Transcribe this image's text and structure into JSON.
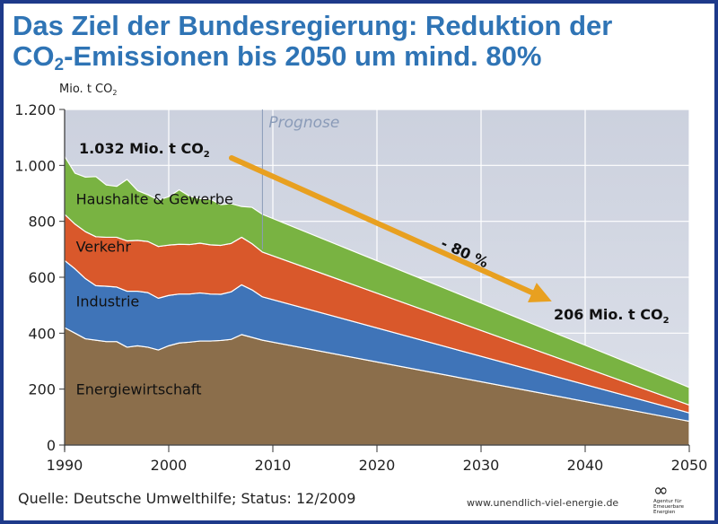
{
  "title": {
    "line1": "Das Ziel der Bundesregierung: Reduktion der",
    "line2_pre": "CO",
    "line2_sub": "2",
    "line2_post": "-Emissionen bis 2050 um mind. 80%"
  },
  "footer": {
    "source": "Quelle: Deutsche Umwelthilfe; Status: 12/2009",
    "url": "www.unendlich-viel-energie.de",
    "logo_mark": "∞",
    "logo_text": "Agentur für Erneuerbare Energien"
  },
  "chart_data": {
    "type": "area",
    "stacked": true,
    "ylabel": "Mio. t CO",
    "ylabel_sub": "2",
    "xlim": [
      1990,
      2050
    ],
    "ylim": [
      0,
      1200
    ],
    "grid": true,
    "x_ticks": [
      1990,
      2000,
      2010,
      2020,
      2030,
      2040,
      2050
    ],
    "y_ticks": [
      0,
      200,
      400,
      600,
      800,
      1000,
      1200
    ],
    "y_tick_labels": [
      "0",
      "200",
      "400",
      "600",
      "800",
      "1.000",
      "1.200"
    ],
    "forecast_start": 2009,
    "forecast_label": "Prognose",
    "x": [
      1990,
      1991,
      1992,
      1993,
      1994,
      1995,
      1996,
      1997,
      1998,
      1999,
      2000,
      2001,
      2002,
      2003,
      2004,
      2005,
      2006,
      2007,
      2008,
      2009,
      2050
    ],
    "series": [
      {
        "name": "Energiewirtschaft",
        "color": "#8b6e4b",
        "values": [
          420,
          400,
          380,
          375,
          370,
          370,
          350,
          355,
          350,
          340,
          355,
          365,
          368,
          372,
          372,
          374,
          378,
          395,
          385,
          375,
          85
        ]
      },
      {
        "name": "Industrie",
        "color": "#3f74b8",
        "values": [
          240,
          230,
          215,
          195,
          198,
          195,
          200,
          195,
          195,
          185,
          180,
          175,
          172,
          172,
          168,
          165,
          170,
          178,
          170,
          155,
          30
        ]
      },
      {
        "name": "Verkehr",
        "color": "#d9582b",
        "values": [
          165,
          160,
          168,
          175,
          175,
          178,
          180,
          182,
          183,
          185,
          180,
          178,
          177,
          178,
          176,
          175,
          173,
          170,
          165,
          160,
          28
        ]
      },
      {
        "name": "Haushalte & Gewerbe",
        "color": "#79b342",
        "values": [
          207,
          182,
          195,
          215,
          187,
          182,
          220,
          178,
          167,
          166,
          173,
          195,
          173,
          159,
          163,
          146,
          142,
          110,
          130,
          135,
          63
        ]
      }
    ],
    "annotations": {
      "start_value_pre": "1.032 Mio. t CO",
      "start_value_sub": "2",
      "end_value_pre": "206 Mio. t CO",
      "end_value_sub": "2",
      "reduction": "- 80 %",
      "arrow_color": "#e8a020"
    }
  }
}
